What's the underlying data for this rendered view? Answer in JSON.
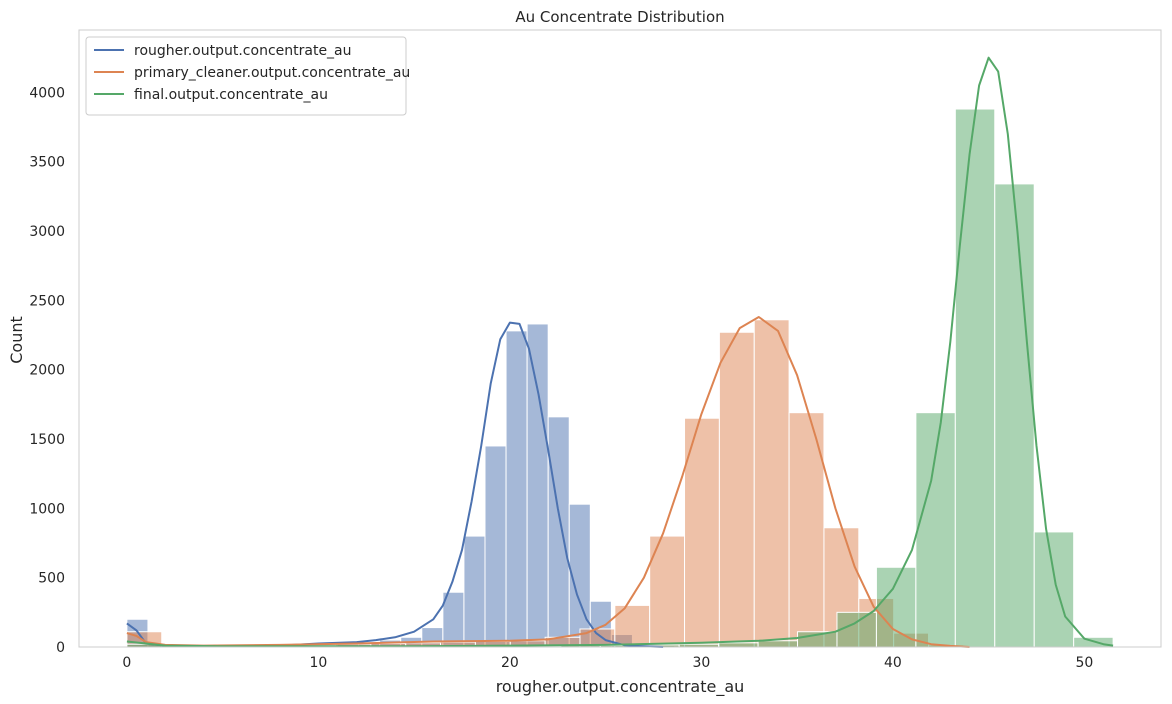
{
  "chart_data": {
    "type": "histogram-kde",
    "title": "Au Concentrate Distribution",
    "xlabel": "rougher.output.concentrate_au",
    "ylabel": "Count",
    "xlim": [
      -2.5,
      54
    ],
    "ylim": [
      0,
      4450
    ],
    "xticks": [
      0,
      10,
      20,
      30,
      40,
      50
    ],
    "yticks": [
      0,
      500,
      1000,
      1500,
      2000,
      2500,
      3000,
      3500,
      4000
    ],
    "grid": false,
    "legend": "top-left",
    "series": [
      {
        "name": "rougher.output.concentrate_au",
        "color": "#4c72b0",
        "bar_alpha": 0.5,
        "bin_edges": [
          0.0,
          1.1,
          2.2,
          3.3,
          4.4,
          5.5,
          6.6,
          7.7,
          8.8,
          9.9,
          11.0,
          12.1,
          13.2,
          14.3,
          15.4,
          16.5,
          17.6,
          18.7,
          19.8,
          20.9,
          22.0,
          23.1,
          24.2,
          25.3,
          26.4,
          27.5,
          28.6
        ],
        "counts": [
          200,
          20,
          5,
          5,
          5,
          5,
          10,
          10,
          15,
          25,
          25,
          35,
          50,
          70,
          140,
          395,
          800,
          1450,
          2280,
          2330,
          1660,
          1030,
          330,
          90,
          20,
          10
        ],
        "kde_x": [
          0,
          0.5,
          1,
          2,
          4,
          6,
          8,
          10,
          12,
          13,
          14,
          15,
          16,
          16.5,
          17,
          17.5,
          18,
          18.5,
          19,
          19.5,
          20,
          20.5,
          21,
          21.5,
          22,
          22.5,
          23,
          23.5,
          24,
          24.5,
          25,
          26,
          27,
          28
        ],
        "kde_y": [
          170,
          120,
          25,
          10,
          5,
          5,
          10,
          25,
          35,
          50,
          70,
          110,
          200,
          300,
          470,
          700,
          1050,
          1450,
          1900,
          2220,
          2340,
          2330,
          2150,
          1820,
          1420,
          1000,
          640,
          380,
          200,
          100,
          50,
          12,
          5,
          0
        ]
      },
      {
        "name": "primary_cleaner.output.concentrate_au",
        "color": "#dd8452",
        "bar_alpha": 0.5,
        "bin_edges": [
          0.0,
          1.82,
          3.64,
          5.46,
          7.28,
          9.1,
          10.92,
          12.74,
          14.56,
          16.38,
          18.2,
          20.02,
          21.84,
          23.66,
          25.48,
          27.3,
          29.12,
          30.94,
          32.76,
          34.58,
          36.4,
          38.22,
          40.04,
          41.86,
          43.68
        ],
        "counts": [
          110,
          15,
          10,
          5,
          10,
          15,
          20,
          25,
          30,
          35,
          40,
          45,
          70,
          130,
          300,
          800,
          1650,
          2270,
          2360,
          1690,
          860,
          350,
          100,
          15
        ],
        "kde_x": [
          0,
          0.5,
          1,
          2,
          4,
          8,
          12,
          16,
          20,
          22,
          24,
          25,
          26,
          27,
          28,
          29,
          30,
          31,
          32,
          33,
          34,
          35,
          36,
          37,
          38,
          39,
          40,
          41,
          42,
          43,
          44
        ],
        "kde_y": [
          100,
          80,
          35,
          15,
          10,
          15,
          25,
          40,
          45,
          55,
          100,
          160,
          280,
          500,
          820,
          1230,
          1680,
          2050,
          2300,
          2380,
          2280,
          1960,
          1500,
          1000,
          580,
          290,
          130,
          55,
          20,
          8,
          0
        ]
      },
      {
        "name": "final.output.concentrate_au",
        "color": "#55a868",
        "bar_alpha": 0.5,
        "bin_edges": [
          0.0,
          2.06,
          4.12,
          6.18,
          8.24,
          10.3,
          12.36,
          14.42,
          16.48,
          18.54,
          20.6,
          22.66,
          24.72,
          26.78,
          28.84,
          30.9,
          32.96,
          35.02,
          37.08,
          39.14,
          41.2,
          43.26,
          45.32,
          47.38,
          49.44,
          51.5
        ],
        "counts": [
          20,
          5,
          5,
          5,
          5,
          5,
          5,
          5,
          5,
          5,
          5,
          10,
          10,
          15,
          20,
          30,
          45,
          110,
          250,
          575,
          1690,
          3880,
          3340,
          830,
          70
        ],
        "kde_x": [
          0,
          1,
          2,
          5,
          10,
          15,
          20,
          25,
          30,
          33,
          35,
          37,
          38,
          39,
          40,
          41,
          42,
          42.5,
          43,
          43.5,
          44,
          44.5,
          45,
          45.5,
          46,
          46.5,
          47,
          47.5,
          48,
          48.5,
          49,
          50,
          51,
          51.5
        ],
        "kde_y": [
          40,
          25,
          10,
          5,
          5,
          5,
          10,
          15,
          30,
          45,
          65,
          110,
          170,
          260,
          420,
          700,
          1200,
          1620,
          2200,
          2900,
          3550,
          4050,
          4250,
          4150,
          3700,
          3000,
          2200,
          1450,
          850,
          450,
          220,
          60,
          20,
          10
        ]
      }
    ]
  }
}
